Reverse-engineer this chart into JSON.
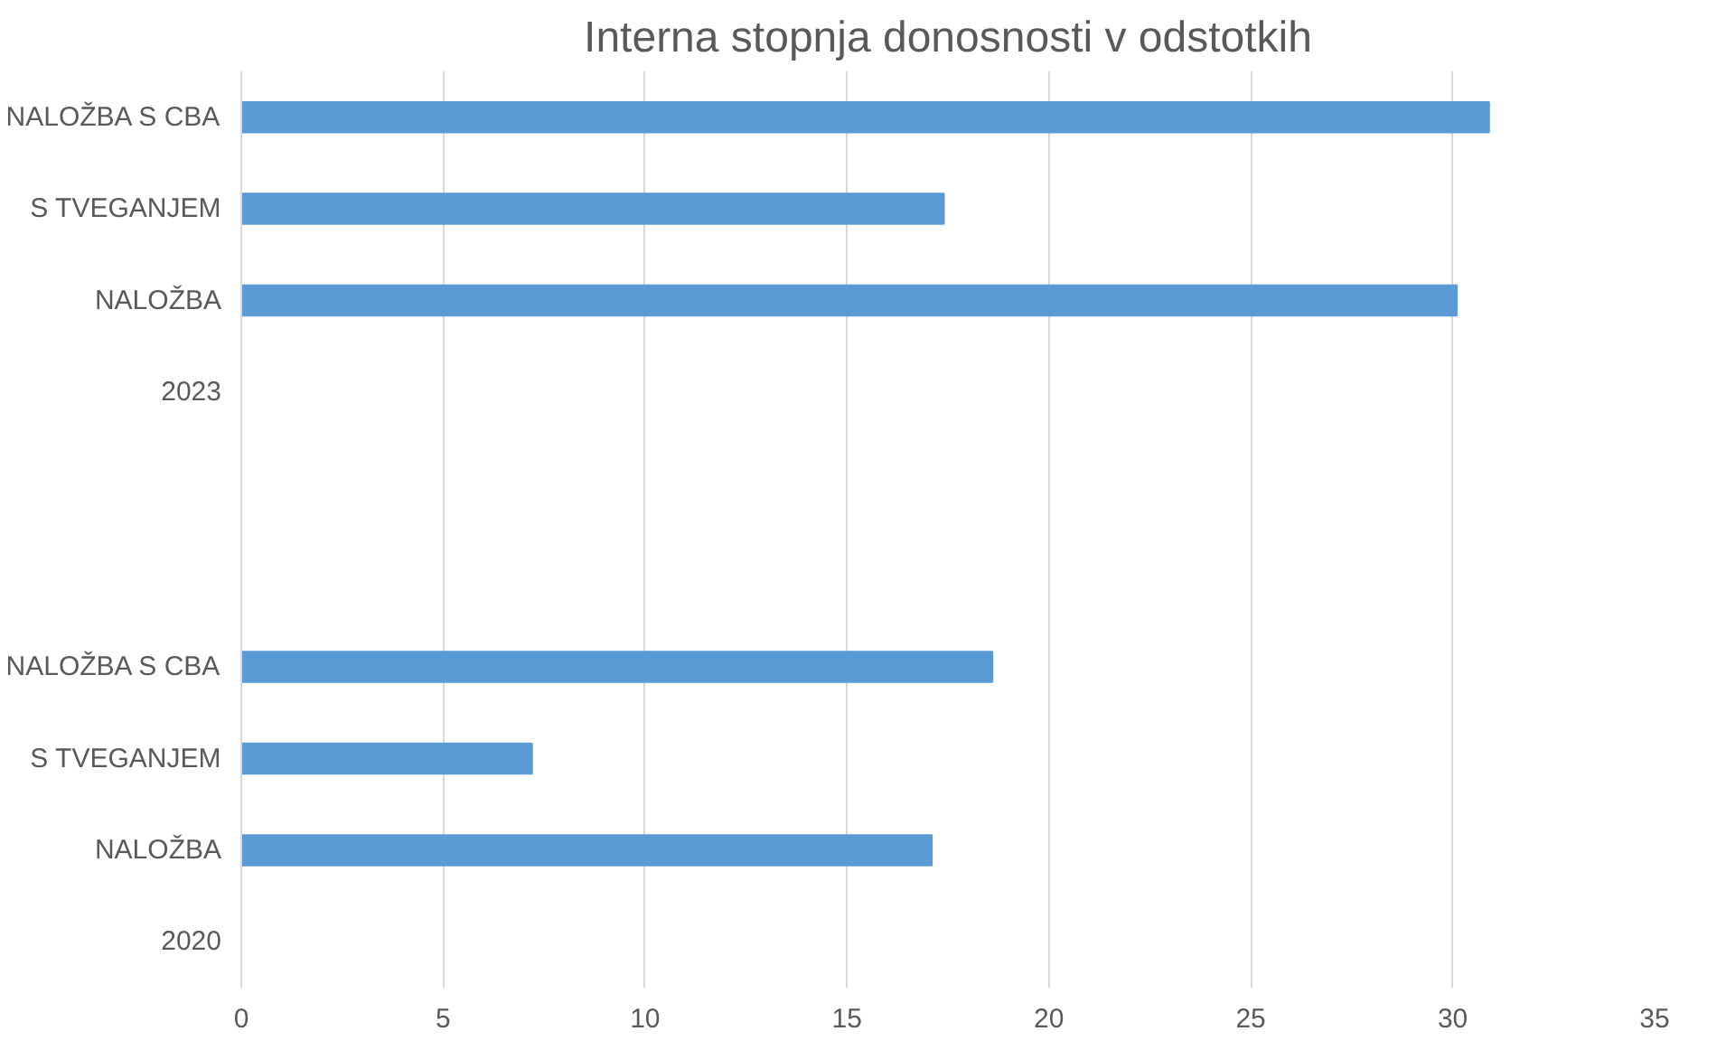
{
  "chart_data": {
    "type": "bar",
    "orientation": "horizontal",
    "title": "Interna stopnja donosnosti v odstotkih",
    "categories": [
      "NALOŽBA S CBA",
      "S TVEGANJEM",
      "NALOŽBA",
      "2023",
      null,
      null,
      "NALOŽBA S CBA",
      "S TVEGANJEM",
      "NALOŽBA",
      "2020"
    ],
    "values": [
      30.9,
      17.4,
      30.1,
      null,
      null,
      null,
      18.6,
      7.2,
      17.1,
      null
    ],
    "color": "#5b9bd5",
    "xlim": [
      0,
      35
    ],
    "xticks": [
      0,
      5,
      10,
      15,
      20,
      25,
      30,
      35
    ],
    "grid": "x"
  }
}
